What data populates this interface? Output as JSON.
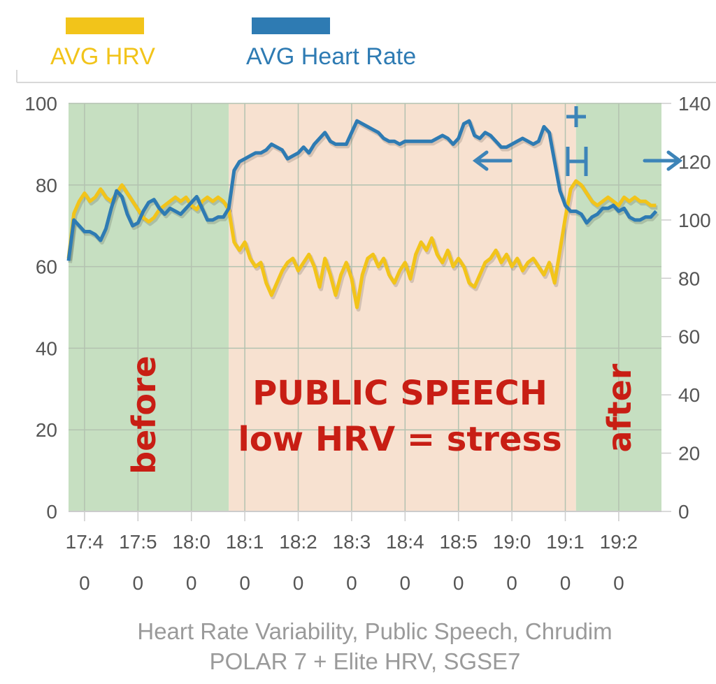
{
  "colors": {
    "hrv": "#f2c41a",
    "heart_rate": "#2e7bb3",
    "calm_band": "#c6dfc1",
    "speech_band": "#f7e1d0",
    "annotation": "#c81e14"
  },
  "legend": [
    {
      "key": "hrv",
      "label": "AVG HRV"
    },
    {
      "key": "heart_rate",
      "label": "AVG Heart Rate"
    }
  ],
  "annotations": {
    "before": "before",
    "after": "after",
    "speech_line1": "PUBLIC SPEECH",
    "speech_line2": "low HRV = stress"
  },
  "caption": {
    "line1": "Heart Rate Variability, Public Speech, Chrudim",
    "line2": "POLAR 7 + Elite HRV, SGSE7"
  },
  "chart_data": {
    "type": "line",
    "x_tick_labels": [
      {
        "top": "17:4",
        "bottom": "0"
      },
      {
        "top": "17:5",
        "bottom": "0"
      },
      {
        "top": "18:0",
        "bottom": "0"
      },
      {
        "top": "18:1",
        "bottom": "0"
      },
      {
        "top": "18:2",
        "bottom": "0"
      },
      {
        "top": "18:3",
        "bottom": "0"
      },
      {
        "top": "18:4",
        "bottom": "0"
      },
      {
        "top": "18:5",
        "bottom": "0"
      },
      {
        "top": "19:0",
        "bottom": "0"
      },
      {
        "top": "19:1",
        "bottom": "0"
      },
      {
        "top": "19:2",
        "bottom": "0"
      }
    ],
    "xlim": [
      "17:37",
      "19:28"
    ],
    "y_left": {
      "ylim": [
        0,
        100
      ],
      "ticks": [
        "0",
        "20",
        "40",
        "60",
        "80",
        "100"
      ]
    },
    "y_right": {
      "ylim": [
        0,
        140
      ],
      "ticks": [
        "0",
        "20",
        "40",
        "60",
        "80",
        "100",
        "120",
        "140"
      ]
    },
    "grid": true,
    "legend_position": "top-left",
    "regions": [
      {
        "label": "before",
        "start": "17:37",
        "end": "18:07"
      },
      {
        "label": "speech",
        "start": "18:07",
        "end": "19:12"
      },
      {
        "label": "after",
        "start": "19:12",
        "end": "19:28"
      }
    ],
    "series": [
      {
        "name": "AVG HRV",
        "axis": "left",
        "points": [
          [
            "17:37",
            62
          ],
          [
            "17:38",
            73
          ],
          [
            "17:39",
            76
          ],
          [
            "17:40",
            78
          ],
          [
            "17:41",
            76
          ],
          [
            "17:42",
            77
          ],
          [
            "17:43",
            79
          ],
          [
            "17:44",
            77
          ],
          [
            "17:45",
            76
          ],
          [
            "17:46",
            78
          ],
          [
            "17:47",
            80
          ],
          [
            "17:48",
            78
          ],
          [
            "17:49",
            76
          ],
          [
            "17:50",
            74
          ],
          [
            "17:51",
            72
          ],
          [
            "17:52",
            71
          ],
          [
            "17:53",
            72
          ],
          [
            "17:54",
            74
          ],
          [
            "17:55",
            75
          ],
          [
            "17:56",
            76
          ],
          [
            "17:57",
            77
          ],
          [
            "17:58",
            76
          ],
          [
            "17:59",
            77
          ],
          [
            "18:00",
            75
          ],
          [
            "18:01",
            74
          ],
          [
            "18:02",
            76
          ],
          [
            "18:03",
            77
          ],
          [
            "18:04",
            76
          ],
          [
            "18:05",
            77
          ],
          [
            "18:06",
            76
          ],
          [
            "18:07",
            74
          ],
          [
            "18:08",
            66
          ],
          [
            "18:09",
            64
          ],
          [
            "18:10",
            66
          ],
          [
            "18:11",
            62
          ],
          [
            "18:12",
            60
          ],
          [
            "18:13",
            61
          ],
          [
            "18:14",
            56
          ],
          [
            "18:15",
            53
          ],
          [
            "18:16",
            56
          ],
          [
            "18:17",
            59
          ],
          [
            "18:18",
            61
          ],
          [
            "18:19",
            62
          ],
          [
            "18:20",
            59
          ],
          [
            "18:21",
            61
          ],
          [
            "18:22",
            63
          ],
          [
            "18:23",
            60
          ],
          [
            "18:24",
            55
          ],
          [
            "18:25",
            62
          ],
          [
            "18:26",
            58
          ],
          [
            "18:27",
            53
          ],
          [
            "18:28",
            58
          ],
          [
            "18:29",
            61
          ],
          [
            "18:30",
            57
          ],
          [
            "18:31",
            50
          ],
          [
            "18:32",
            58
          ],
          [
            "18:33",
            62
          ],
          [
            "18:34",
            63
          ],
          [
            "18:35",
            60
          ],
          [
            "18:36",
            62
          ],
          [
            "18:37",
            58
          ],
          [
            "18:38",
            56
          ],
          [
            "18:39",
            59
          ],
          [
            "18:40",
            61
          ],
          [
            "18:41",
            57
          ],
          [
            "18:42",
            63
          ],
          [
            "18:43",
            66
          ],
          [
            "18:44",
            64
          ],
          [
            "18:45",
            67
          ],
          [
            "18:46",
            63
          ],
          [
            "18:47",
            61
          ],
          [
            "18:48",
            64
          ],
          [
            "18:49",
            60
          ],
          [
            "18:50",
            62
          ],
          [
            "18:51",
            60
          ],
          [
            "18:52",
            56
          ],
          [
            "18:53",
            55
          ],
          [
            "18:54",
            58
          ],
          [
            "18:55",
            61
          ],
          [
            "18:56",
            62
          ],
          [
            "18:57",
            64
          ],
          [
            "18:58",
            61
          ],
          [
            "18:59",
            63
          ],
          [
            "19:00",
            60
          ],
          [
            "19:01",
            62
          ],
          [
            "19:02",
            59
          ],
          [
            "19:03",
            61
          ],
          [
            "19:04",
            62
          ],
          [
            "19:05",
            60
          ],
          [
            "19:06",
            58
          ],
          [
            "19:07",
            61
          ],
          [
            "19:08",
            56
          ],
          [
            "19:09",
            64
          ],
          [
            "19:10",
            72
          ],
          [
            "19:11",
            79
          ],
          [
            "19:12",
            81
          ],
          [
            "19:13",
            80
          ],
          [
            "19:14",
            78
          ],
          [
            "19:15",
            76
          ],
          [
            "19:16",
            75
          ],
          [
            "19:17",
            76
          ],
          [
            "19:18",
            77
          ],
          [
            "19:19",
            76
          ],
          [
            "19:20",
            75
          ],
          [
            "19:21",
            77
          ],
          [
            "19:22",
            76
          ],
          [
            "19:23",
            77
          ],
          [
            "19:24",
            76
          ],
          [
            "19:25",
            76
          ],
          [
            "19:26",
            75
          ],
          [
            "19:27",
            75
          ]
        ]
      },
      {
        "name": "AVG Heart Rate",
        "axis": "right",
        "points": [
          [
            "17:37",
            86
          ],
          [
            "17:38",
            100
          ],
          [
            "17:39",
            98
          ],
          [
            "17:40",
            96
          ],
          [
            "17:41",
            96
          ],
          [
            "17:42",
            95
          ],
          [
            "17:43",
            93
          ],
          [
            "17:44",
            97
          ],
          [
            "17:45",
            104
          ],
          [
            "17:46",
            110
          ],
          [
            "17:47",
            108
          ],
          [
            "17:48",
            102
          ],
          [
            "17:49",
            98
          ],
          [
            "17:50",
            99
          ],
          [
            "17:51",
            103
          ],
          [
            "17:52",
            106
          ],
          [
            "17:53",
            107
          ],
          [
            "17:54",
            104
          ],
          [
            "17:55",
            102
          ],
          [
            "17:56",
            104
          ],
          [
            "17:57",
            103
          ],
          [
            "17:58",
            102
          ],
          [
            "17:59",
            104
          ],
          [
            "18:00",
            106
          ],
          [
            "18:01",
            108
          ],
          [
            "18:02",
            104
          ],
          [
            "18:03",
            100
          ],
          [
            "18:04",
            100
          ],
          [
            "18:05",
            101
          ],
          [
            "18:06",
            101
          ],
          [
            "18:07",
            104
          ],
          [
            "18:08",
            117
          ],
          [
            "18:09",
            120
          ],
          [
            "18:10",
            121
          ],
          [
            "18:11",
            122
          ],
          [
            "18:12",
            123
          ],
          [
            "18:13",
            123
          ],
          [
            "18:14",
            124
          ],
          [
            "18:15",
            126
          ],
          [
            "18:16",
            125
          ],
          [
            "18:17",
            124
          ],
          [
            "18:18",
            121
          ],
          [
            "18:19",
            122
          ],
          [
            "18:20",
            123
          ],
          [
            "18:21",
            125
          ],
          [
            "18:22",
            123
          ],
          [
            "18:23",
            126
          ],
          [
            "18:24",
            128
          ],
          [
            "18:25",
            130
          ],
          [
            "18:26",
            127
          ],
          [
            "18:27",
            126
          ],
          [
            "18:28",
            126
          ],
          [
            "18:29",
            126
          ],
          [
            "18:30",
            130
          ],
          [
            "18:31",
            134
          ],
          [
            "18:32",
            133
          ],
          [
            "18:33",
            132
          ],
          [
            "18:34",
            131
          ],
          [
            "18:35",
            130
          ],
          [
            "18:36",
            128
          ],
          [
            "18:37",
            127
          ],
          [
            "18:38",
            127
          ],
          [
            "18:39",
            126
          ],
          [
            "18:40",
            127
          ],
          [
            "18:41",
            127
          ],
          [
            "18:42",
            127
          ],
          [
            "18:43",
            127
          ],
          [
            "18:44",
            127
          ],
          [
            "18:45",
            127
          ],
          [
            "18:46",
            128
          ],
          [
            "18:47",
            129
          ],
          [
            "18:48",
            128
          ],
          [
            "18:49",
            126
          ],
          [
            "18:50",
            128
          ],
          [
            "18:51",
            133
          ],
          [
            "18:52",
            134
          ],
          [
            "18:53",
            129
          ],
          [
            "18:54",
            128
          ],
          [
            "18:55",
            130
          ],
          [
            "18:56",
            129
          ],
          [
            "18:57",
            127
          ],
          [
            "18:58",
            125
          ],
          [
            "18:59",
            125
          ],
          [
            "19:00",
            126
          ],
          [
            "19:01",
            127
          ],
          [
            "19:02",
            128
          ],
          [
            "19:03",
            127
          ],
          [
            "19:04",
            126
          ],
          [
            "19:05",
            127
          ],
          [
            "19:06",
            132
          ],
          [
            "19:07",
            130
          ],
          [
            "19:08",
            120
          ],
          [
            "19:09",
            110
          ],
          [
            "19:10",
            105
          ],
          [
            "19:11",
            103
          ],
          [
            "19:12",
            103
          ],
          [
            "19:13",
            102
          ],
          [
            "19:14",
            99
          ],
          [
            "19:15",
            101
          ],
          [
            "19:16",
            102
          ],
          [
            "19:17",
            104
          ],
          [
            "19:18",
            104
          ],
          [
            "19:19",
            105
          ],
          [
            "19:20",
            103
          ],
          [
            "19:21",
            104
          ],
          [
            "19:22",
            101
          ],
          [
            "19:23",
            100
          ],
          [
            "19:24",
            100
          ],
          [
            "19:25",
            101
          ],
          [
            "19:26",
            101
          ],
          [
            "19:27",
            103
          ]
        ]
      }
    ]
  }
}
